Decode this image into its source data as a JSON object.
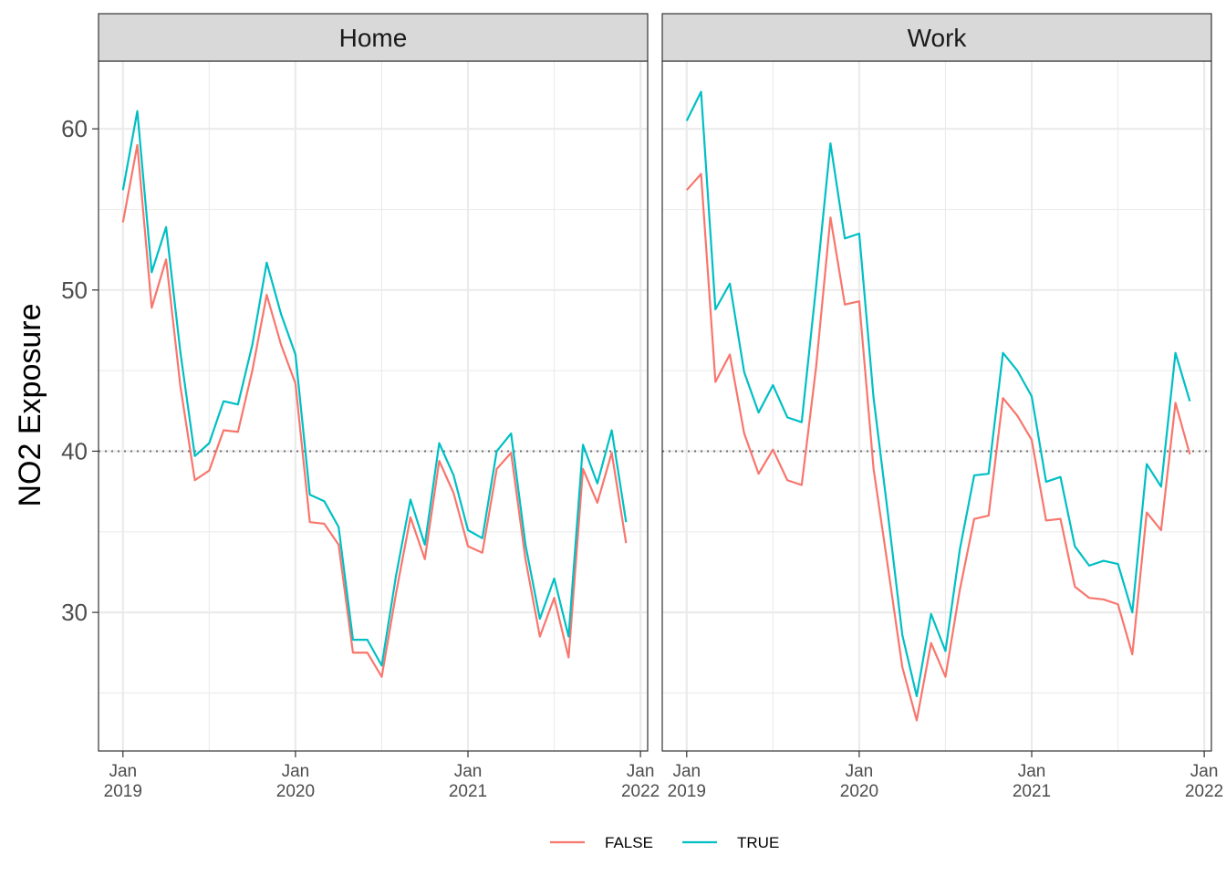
{
  "chart_data": {
    "type": "line",
    "ylabel": "NO2 Exposure",
    "xlabel": "",
    "ylim": [
      21.4,
      64.2
    ],
    "reference_line": {
      "y": 40,
      "style": "dotted"
    },
    "y_ticks": [
      30,
      40,
      50,
      60
    ],
    "x_ticks": [
      {
        "t": 0,
        "label": "Jan\n2019"
      },
      {
        "t": 12,
        "label": "Jan\n2020"
      },
      {
        "t": 24,
        "label": "Jan\n2021"
      },
      {
        "t": 36,
        "label": "Jan\n2022"
      }
    ],
    "x_range_months": [
      -1.7,
      36.5
    ],
    "grid": true,
    "legend": {
      "position": "bottom",
      "entries": [
        "FALSE",
        "TRUE"
      ]
    },
    "colors": {
      "FALSE": "#F8766D",
      "TRUE": "#00BFC4"
    },
    "panels": [
      {
        "name": "Home",
        "x_months": [
          0,
          1,
          2,
          3,
          4,
          5,
          6,
          7,
          8,
          9,
          10,
          11,
          12,
          13,
          14,
          15,
          16,
          17,
          18,
          19,
          20,
          21,
          22,
          23,
          24,
          25,
          26,
          27,
          28,
          29,
          30,
          31,
          32,
          33,
          34,
          35
        ],
        "series": [
          {
            "name": "FALSE",
            "values": [
              54.2,
              59.0,
              48.9,
              51.9,
              44.0,
              38.2,
              38.8,
              41.3,
              41.2,
              45.0,
              49.7,
              46.6,
              44.2,
              35.6,
              35.5,
              34.2,
              27.5,
              27.5,
              26.0,
              31.2,
              35.9,
              33.3,
              39.4,
              37.4,
              34.1,
              33.7,
              38.9,
              39.9,
              33.3,
              28.5,
              30.9,
              27.2,
              38.9,
              36.8,
              39.9,
              34.3
            ]
          },
          {
            "name": "TRUE",
            "values": [
              56.2,
              61.1,
              51.1,
              53.9,
              46.1,
              39.7,
              40.5,
              43.1,
              42.9,
              46.6,
              51.7,
              48.5,
              46.0,
              37.3,
              36.9,
              35.3,
              28.3,
              28.3,
              26.7,
              32.3,
              37.0,
              34.2,
              40.5,
              38.5,
              35.1,
              34.6,
              40.0,
              41.1,
              34.2,
              29.6,
              32.1,
              28.5,
              40.4,
              38.0,
              41.3,
              35.6
            ]
          }
        ]
      },
      {
        "name": "Work",
        "x_months": [
          0,
          1,
          2,
          3,
          4,
          5,
          6,
          7,
          8,
          9,
          10,
          11,
          12,
          13,
          14,
          15,
          16,
          17,
          18,
          19,
          20,
          21,
          22,
          23,
          24,
          25,
          26,
          27,
          28,
          29,
          30,
          31,
          32,
          33,
          34,
          35
        ],
        "series": [
          {
            "name": "FALSE",
            "values": [
              56.2,
              57.2,
              44.3,
              46.0,
              41.1,
              38.6,
              40.1,
              38.2,
              37.9,
              45.2,
              54.5,
              49.1,
              49.3,
              38.9,
              32.8,
              26.6,
              23.3,
              28.1,
              26.0,
              31.4,
              35.8,
              36.0,
              43.3,
              42.2,
              40.7,
              35.7,
              35.8,
              31.6,
              30.9,
              30.8,
              30.5,
              27.4,
              36.2,
              35.1,
              43.0,
              39.8
            ]
          },
          {
            "name": "TRUE",
            "values": [
              60.5,
              62.3,
              48.8,
              50.4,
              44.9,
              42.4,
              44.1,
              42.1,
              41.8,
              50.2,
              59.1,
              53.2,
              53.5,
              43.3,
              36.1,
              28.6,
              24.8,
              29.9,
              27.6,
              33.9,
              38.5,
              38.6,
              46.1,
              45.0,
              43.4,
              38.1,
              38.4,
              34.1,
              32.9,
              33.2,
              33.0,
              30.0,
              39.2,
              37.8,
              46.1,
              43.1
            ]
          }
        ]
      }
    ]
  }
}
